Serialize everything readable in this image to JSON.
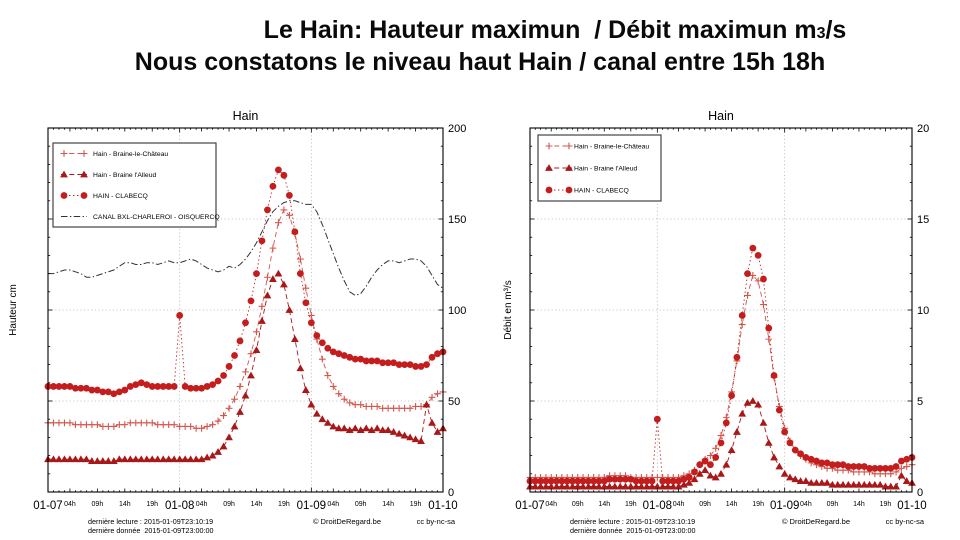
{
  "title": {
    "line1_main": "Le Hain: Hauteur maximun  / Débit maximun ",
    "line1_unit_base": "m",
    "line1_unit_small": "3",
    "line1_unit_rest": "/s",
    "line2": "Nous constatons le niveau haut Hain / canal entre 15h 18h"
  },
  "footer": {
    "line1": "dernière lecture : 2015-01-09T23:10:19",
    "line2": "dernière donnée  2015-01-09T23:00:00",
    "copyright": "© DroitDeRegard.be",
    "license": "cc by-nc-sa"
  },
  "colors": {
    "clabecq_red": "#c41d1d",
    "chateau_red": "#d4574e",
    "alleud_red": "#a81818",
    "canal_black": "#333333",
    "grid_gray": "#b8b8b8",
    "frame_black": "#000000"
  },
  "chart_data": [
    {
      "type": "line",
      "title": "Hain",
      "ylabel": "Hauteur cm",
      "ylim": [
        0,
        200
      ],
      "yticks": [
        0,
        50,
        100,
        150,
        200
      ],
      "ytick_minor_step": 10,
      "grid_y": [
        50,
        100,
        150
      ],
      "grid_x_hours": [
        24,
        48
      ],
      "x_range_hours": [
        0,
        72
      ],
      "legend_position": "top-left",
      "x_day_ticks": [
        {
          "hour": 0,
          "label": "01-07"
        },
        {
          "hour": 24,
          "label": "01-08"
        },
        {
          "hour": 48,
          "label": "01-09"
        },
        {
          "hour": 72,
          "label": "01-10"
        }
      ],
      "x_hour_ticks": [
        {
          "hour": 4,
          "label": "04h"
        },
        {
          "hour": 9,
          "label": "09h"
        },
        {
          "hour": 14,
          "label": "14h"
        },
        {
          "hour": 19,
          "label": "19h"
        },
        {
          "hour": 28,
          "label": "04h"
        },
        {
          "hour": 33,
          "label": "09h"
        },
        {
          "hour": 38,
          "label": "14h"
        },
        {
          "hour": 43,
          "label": "19h"
        },
        {
          "hour": 52,
          "label": "04h"
        },
        {
          "hour": 57,
          "label": "09h"
        },
        {
          "hour": 62,
          "label": "14h"
        },
        {
          "hour": 67,
          "label": "19h"
        }
      ],
      "series": [
        {
          "name": "Hain - Braine-le-Château",
          "marker": "plus",
          "line": "dashed",
          "color": "#d4574e",
          "values": [
            38,
            38,
            38,
            38,
            38,
            37,
            37,
            37,
            37,
            37,
            36,
            36,
            36,
            37,
            37,
            38,
            38,
            38,
            38,
            38,
            37,
            37,
            37,
            37,
            36,
            36,
            36,
            35,
            35,
            36,
            37,
            39,
            42,
            46,
            51,
            58,
            66,
            76,
            88,
            102,
            118,
            134,
            148,
            155,
            152,
            142,
            128,
            112,
            97,
            84,
            73,
            64,
            58,
            54,
            51,
            49,
            48,
            48,
            47,
            47,
            47,
            46,
            46,
            46,
            46,
            46,
            46,
            47,
            47,
            48,
            52,
            54,
            55
          ]
        },
        {
          "name": "Hain - Braine l'Alleud",
          "marker": "triangle",
          "line": "dashed",
          "color": "#a81818",
          "values": [
            18,
            18,
            18,
            18,
            18,
            18,
            18,
            18,
            17,
            17,
            17,
            17,
            17,
            18,
            18,
            18,
            18,
            18,
            18,
            18,
            18,
            18,
            18,
            18,
            18,
            18,
            18,
            18,
            18,
            19,
            20,
            22,
            25,
            30,
            36,
            44,
            53,
            64,
            78,
            94,
            108,
            117,
            120,
            114,
            100,
            84,
            68,
            56,
            48,
            43,
            40,
            38,
            36,
            35,
            35,
            34,
            35,
            34,
            35,
            34,
            35,
            34,
            34,
            33,
            32,
            31,
            30,
            29,
            28,
            48,
            38,
            33,
            35
          ]
        },
        {
          "name": "HAIN - CLABECQ",
          "marker": "circle",
          "line": "dotted",
          "color": "#c41d1d",
          "values": [
            58,
            58,
            58,
            58,
            58,
            57,
            57,
            57,
            56,
            56,
            55,
            55,
            54,
            55,
            56,
            58,
            59,
            60,
            59,
            58,
            58,
            58,
            58,
            58,
            97,
            58,
            57,
            57,
            57,
            58,
            59,
            61,
            64,
            69,
            75,
            83,
            93,
            105,
            120,
            138,
            155,
            168,
            177,
            174,
            163,
            143,
            120,
            104,
            93,
            86,
            82,
            79,
            77,
            76,
            75,
            74,
            73,
            73,
            72,
            72,
            72,
            71,
            71,
            71,
            70,
            70,
            70,
            69,
            69,
            70,
            74,
            76,
            77
          ]
        },
        {
          "name": "CANAL BXL-CHARLEROI - OISQUERCQ",
          "marker": "none",
          "line": "dashdot",
          "color": "#333333",
          "values": [
            120,
            120,
            121,
            122,
            122,
            121,
            120,
            118,
            118,
            119,
            120,
            121,
            122,
            124,
            126,
            126,
            125,
            125,
            126,
            126,
            125,
            126,
            127,
            126,
            126,
            127,
            128,
            127,
            125,
            123,
            122,
            121,
            122,
            124,
            123,
            125,
            128,
            132,
            137,
            143,
            149,
            154,
            157,
            159,
            160,
            160,
            159,
            158,
            158,
            154,
            147,
            139,
            131,
            123,
            116,
            110,
            108,
            109,
            113,
            118,
            122,
            125,
            127,
            127,
            126,
            127,
            128,
            128,
            127,
            124,
            119,
            114,
            112
          ]
        }
      ]
    },
    {
      "type": "line",
      "title": "Hain",
      "ylabel": "Débit en m³/s",
      "ylim": [
        0,
        20
      ],
      "yticks": [
        0,
        5,
        10,
        15,
        20
      ],
      "ytick_minor_step": 1,
      "grid_y": [
        5,
        10,
        15
      ],
      "grid_x_hours": [
        24,
        48
      ],
      "x_range_hours": [
        0,
        72
      ],
      "legend_position": "top-left",
      "x_day_ticks": [
        {
          "hour": 0,
          "label": "01-07"
        },
        {
          "hour": 24,
          "label": "01-08"
        },
        {
          "hour": 48,
          "label": "01-09"
        },
        {
          "hour": 72,
          "label": "01-10"
        }
      ],
      "x_hour_ticks": [
        {
          "hour": 4,
          "label": "04h"
        },
        {
          "hour": 9,
          "label": "09h"
        },
        {
          "hour": 14,
          "label": "14h"
        },
        {
          "hour": 19,
          "label": "19h"
        },
        {
          "hour": 28,
          "label": "04h"
        },
        {
          "hour": 33,
          "label": "09h"
        },
        {
          "hour": 38,
          "label": "14h"
        },
        {
          "hour": 43,
          "label": "19h"
        },
        {
          "hour": 52,
          "label": "04h"
        },
        {
          "hour": 57,
          "label": "09h"
        },
        {
          "hour": 62,
          "label": "14h"
        },
        {
          "hour": 67,
          "label": "19h"
        }
      ],
      "series": [
        {
          "name": "Hain - Braine-le-Château",
          "marker": "plus",
          "line": "dashed",
          "color": "#d4574e",
          "values": [
            0.8,
            0.8,
            0.8,
            0.8,
            0.8,
            0.8,
            0.8,
            0.8,
            0.8,
            0.8,
            0.8,
            0.8,
            0.8,
            0.8,
            0.8,
            0.9,
            0.9,
            0.9,
            0.9,
            0.8,
            0.8,
            0.8,
            0.8,
            0.8,
            0.8,
            0.8,
            0.8,
            0.8,
            0.8,
            0.9,
            1.0,
            1.2,
            1.5,
            1.8,
            2.0,
            2.4,
            3.1,
            4.1,
            5.5,
            7.2,
            9.2,
            10.8,
            11.9,
            11.6,
            10.3,
            8.4,
            6.3,
            4.7,
            3.5,
            2.8,
            2.3,
            2.0,
            1.8,
            1.6,
            1.5,
            1.4,
            1.3,
            1.3,
            1.2,
            1.2,
            1.2,
            1.1,
            1.1,
            1.1,
            1.1,
            1.0,
            1.0,
            1.0,
            1.0,
            1.1,
            1.3,
            1.4,
            1.5
          ]
        },
        {
          "name": "Hain - Braine l'Alleud",
          "marker": "triangle",
          "line": "dashed",
          "color": "#a81818",
          "values": [
            0.3,
            0.3,
            0.3,
            0.3,
            0.3,
            0.3,
            0.3,
            0.3,
            0.3,
            0.3,
            0.3,
            0.3,
            0.3,
            0.3,
            0.3,
            0.3,
            0.3,
            0.3,
            0.3,
            0.3,
            0.3,
            0.3,
            0.3,
            0.3,
            0.3,
            0.3,
            0.3,
            0.3,
            0.3,
            0.4,
            0.5,
            0.7,
            1.0,
            1.2,
            0.9,
            0.8,
            1.0,
            1.5,
            2.3,
            3.3,
            4.3,
            4.9,
            5.0,
            4.8,
            3.8,
            2.7,
            1.9,
            1.4,
            1.0,
            0.8,
            0.7,
            0.6,
            0.6,
            0.5,
            0.5,
            0.5,
            0.5,
            0.4,
            0.4,
            0.4,
            0.4,
            0.4,
            0.4,
            0.4,
            0.4,
            0.4,
            0.4,
            0.3,
            0.3,
            0.3,
            0.9,
            0.6,
            0.5
          ]
        },
        {
          "name": "HAIN - CLABECQ",
          "marker": "circle",
          "line": "dotted",
          "color": "#c41d1d",
          "values": [
            0.6,
            0.6,
            0.6,
            0.6,
            0.6,
            0.6,
            0.6,
            0.6,
            0.6,
            0.6,
            0.6,
            0.6,
            0.6,
            0.6,
            0.6,
            0.7,
            0.7,
            0.7,
            0.7,
            0.7,
            0.6,
            0.6,
            0.6,
            0.6,
            4.0,
            0.6,
            0.6,
            0.6,
            0.6,
            0.7,
            0.8,
            1.1,
            1.5,
            1.7,
            1.5,
            1.9,
            2.7,
            3.8,
            5.3,
            7.4,
            9.7,
            12.0,
            13.4,
            13.0,
            11.7,
            9.0,
            6.4,
            4.5,
            3.3,
            2.7,
            2.3,
            2.1,
            1.9,
            1.8,
            1.7,
            1.6,
            1.6,
            1.5,
            1.5,
            1.5,
            1.4,
            1.4,
            1.4,
            1.4,
            1.3,
            1.3,
            1.3,
            1.3,
            1.3,
            1.4,
            1.7,
            1.8,
            1.9
          ]
        }
      ]
    }
  ]
}
